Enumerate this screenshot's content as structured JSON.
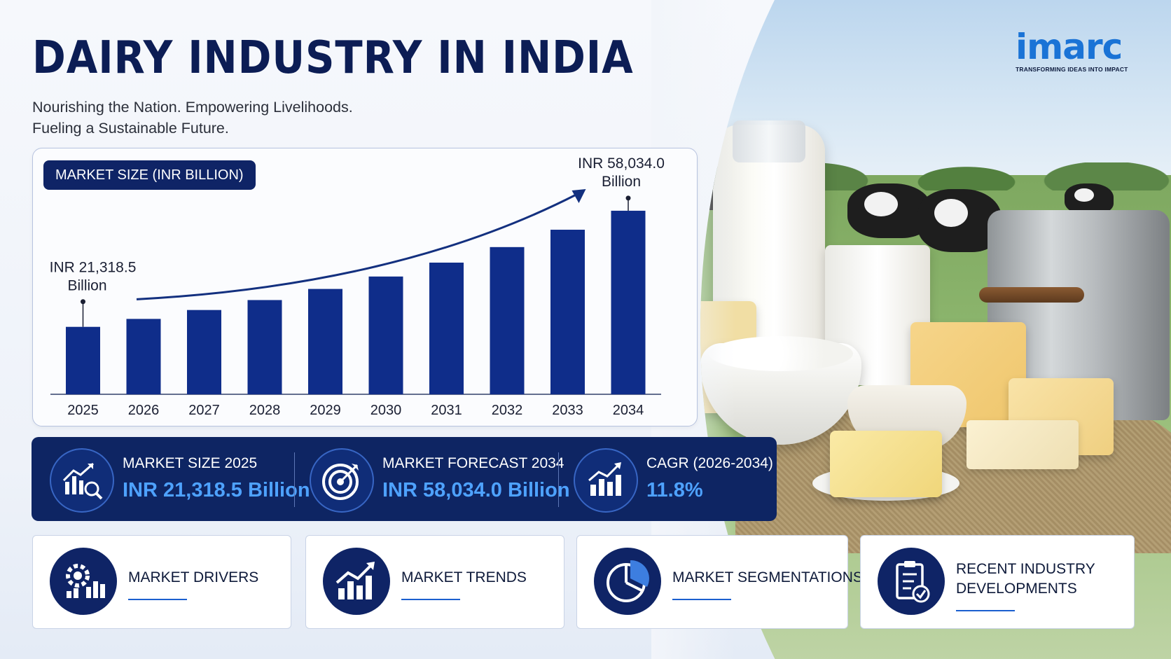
{
  "header": {
    "title": "DAIRY INDUSTRY IN INDIA",
    "subtitle_line1": "Nourishing the Nation. Empowering Livelihoods.",
    "subtitle_line2": "Fueling a Sustainable Future."
  },
  "logo": {
    "word": "imarc",
    "tagline": "TRANSFORMING IDEAS INTO IMPACT"
  },
  "chart_data": {
    "type": "bar",
    "title": "MARKET SIZE (INR BILLION)",
    "categories": [
      "2025",
      "2026",
      "2027",
      "2028",
      "2029",
      "2030",
      "2031",
      "2032",
      "2033",
      "2034"
    ],
    "values": [
      21318.5,
      23833,
      26645,
      29790,
      33305,
      37235,
      41628,
      46540,
      52032,
      58034.0
    ],
    "ylim": [
      0,
      62000
    ],
    "bar_color": "#0f2d8a",
    "start_label": [
      "INR 21,318.5",
      "Billion"
    ],
    "end_label": [
      "INR 58,034.0",
      "Billion"
    ],
    "grid": false,
    "trend_arrow": true
  },
  "stats": [
    {
      "icon": "chart-magnifier-icon",
      "label": "MARKET SIZE 2025",
      "value": "INR 21,318.5 Billion"
    },
    {
      "icon": "target-icon",
      "label": "MARKET FORECAST 2034",
      "value": "INR 58,034.0 Billion"
    },
    {
      "icon": "growth-chart-icon",
      "label": "CAGR (2026-2034)",
      "value": "11.8%"
    }
  ],
  "cards": [
    {
      "icon": "gear-chart-icon",
      "label": "MARKET DRIVERS"
    },
    {
      "icon": "trend-chart-icon",
      "label": "MARKET TRENDS"
    },
    {
      "icon": "pie-chart-icon",
      "label": "MARKET SEGMENTATIONS"
    },
    {
      "icon": "clipboard-check-icon",
      "label_line1": "RECENT INDUSTRY",
      "label_line2": "DEVELOPMENTS"
    }
  ],
  "colors": {
    "navy": "#0f2466",
    "accent_blue": "#4ea2ff",
    "brand_blue": "#1a73d6"
  }
}
